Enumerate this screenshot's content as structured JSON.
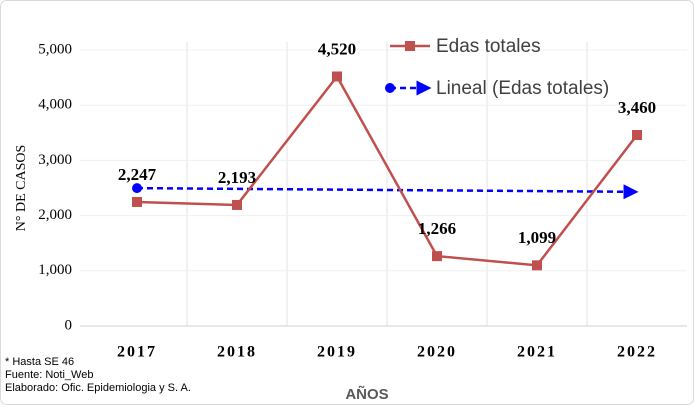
{
  "chart_data": {
    "type": "line",
    "x_label": "AÑOS",
    "y_label": "N° DE CASOS",
    "categories": [
      "2017",
      "2018",
      "2019",
      "2020",
      "2021",
      "2022"
    ],
    "series": [
      {
        "name": "Edas totales",
        "color": "#c0504d",
        "values": [
          2247,
          2193,
          4520,
          1266,
          1099,
          3460
        ],
        "value_labels": [
          "2,247",
          "2,193",
          "4,520",
          "1,266",
          "1,099",
          "3,460"
        ]
      },
      {
        "name": "Lineal (Edas totales)",
        "color": "#0000ff",
        "values": [
          2498,
          2484,
          2471,
          2457,
          2444,
          2430
        ]
      }
    ],
    "ylim": [
      0,
      5000
    ],
    "yticks": [
      0,
      {
        "value": 1000,
        "label": "1,000"
      },
      {
        "value": 2000,
        "label": "2,000"
      },
      {
        "value": 3000,
        "label": "3,000"
      },
      {
        "value": 4000,
        "label": "4,000"
      },
      {
        "value": 5000,
        "label": "5,000"
      }
    ],
    "grid": true,
    "notes": [
      "* Hasta SE 46",
      "Fuente: Noti_Web",
      "Elaborado: Ofic. Epidemiologia y S. A."
    ]
  }
}
